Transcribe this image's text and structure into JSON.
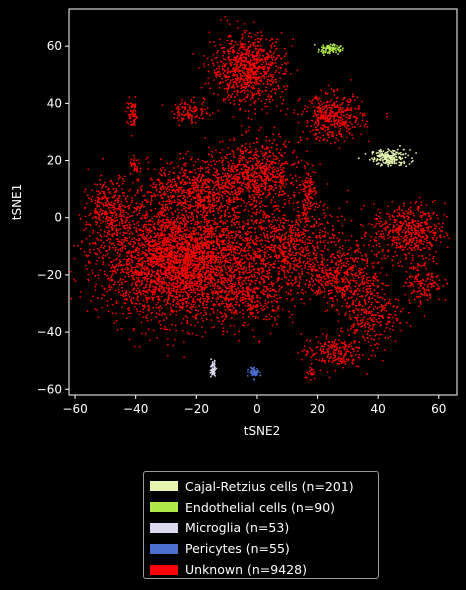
{
  "chart_data": {
    "type": "scatter",
    "xlabel": "tSNE2",
    "ylabel": "tSNE1",
    "xlim": [
      -62,
      66
    ],
    "ylim": [
      -62,
      73
    ],
    "xticks": [
      -60,
      -40,
      -20,
      0,
      20,
      40,
      60
    ],
    "yticks": [
      -60,
      -40,
      -20,
      0,
      20,
      40,
      60
    ],
    "xtick_labels": [
      "−60",
      "−40",
      "−20",
      "0",
      "20",
      "40",
      "60"
    ],
    "ytick_labels": [
      "−60",
      "−40",
      "−20",
      "0",
      "20",
      "40",
      "60"
    ],
    "grid": false,
    "legend_position": "below",
    "series": [
      {
        "name": "Cajal-Retzius cells (n=201)",
        "color": "#e6f5b0",
        "n": 201,
        "clusters": [
          {
            "cx": 44,
            "cy": 21,
            "sx": 3.2,
            "sy": 1.4,
            "w": 1
          }
        ]
      },
      {
        "name": "Endothelial cells (n=90)",
        "color": "#b0e84a",
        "n": 90,
        "clusters": [
          {
            "cx": 24,
            "cy": 59,
            "sx": 1.8,
            "sy": 0.9,
            "w": 1
          }
        ]
      },
      {
        "name": "Microglia (n=53)",
        "color": "#dcd8f0",
        "n": 53,
        "clusters": [
          {
            "cx": -14.5,
            "cy": -53,
            "sx": 0.5,
            "sy": 1.3,
            "w": 1
          }
        ]
      },
      {
        "name": "Pericytes (n=55)",
        "color": "#4a6fd0",
        "n": 55,
        "clusters": [
          {
            "cx": -1,
            "cy": -54,
            "sx": 0.8,
            "sy": 1.0,
            "w": 1
          }
        ]
      },
      {
        "name": "Unknown (n=9428)",
        "color": "#ff0000",
        "n": 9428,
        "clusters": [
          {
            "cx": -25,
            "cy": -15,
            "sx": 13,
            "sy": 10,
            "w": 35
          },
          {
            "cx": -20,
            "cy": 10,
            "sx": 8,
            "sy": 5,
            "w": 6
          },
          {
            "cx": 0,
            "cy": 15,
            "sx": 7,
            "sy": 6,
            "w": 7
          },
          {
            "cx": -48,
            "cy": 3,
            "sx": 4,
            "sy": 5,
            "w": 3
          },
          {
            "cx": -3,
            "cy": 52,
            "sx": 6,
            "sy": 6,
            "w": 8
          },
          {
            "cx": 25,
            "cy": 35,
            "sx": 5,
            "sy": 4,
            "w": 4
          },
          {
            "cx": -22,
            "cy": 37,
            "sx": 3,
            "sy": 2,
            "w": 1
          },
          {
            "cx": -41,
            "cy": 36,
            "sx": 1,
            "sy": 2.5,
            "w": 0.6
          },
          {
            "cx": 17,
            "cy": 9,
            "sx": 1.2,
            "sy": 4,
            "w": 1
          },
          {
            "cx": 10,
            "cy": -10,
            "sx": 9,
            "sy": 8,
            "w": 8
          },
          {
            "cx": 28,
            "cy": -20,
            "sx": 6,
            "sy": 5,
            "w": 4
          },
          {
            "cx": 50,
            "cy": -5,
            "sx": 6,
            "sy": 5,
            "w": 5
          },
          {
            "cx": 37,
            "cy": -33,
            "sx": 5,
            "sy": 6,
            "w": 3
          },
          {
            "cx": 25,
            "cy": -47,
            "sx": 5,
            "sy": 3,
            "w": 2
          },
          {
            "cx": 55,
            "cy": -22,
            "sx": 3,
            "sy": 4,
            "w": 1.5
          },
          {
            "cx": -3,
            "cy": -28,
            "sx": 6,
            "sy": 5,
            "w": 3
          },
          {
            "cx": 18,
            "cy": -55,
            "sx": 1,
            "sy": 1,
            "w": 0.2
          },
          {
            "cx": -40,
            "cy": 18,
            "sx": 1,
            "sy": 1.5,
            "w": 0.3
          }
        ]
      }
    ]
  }
}
